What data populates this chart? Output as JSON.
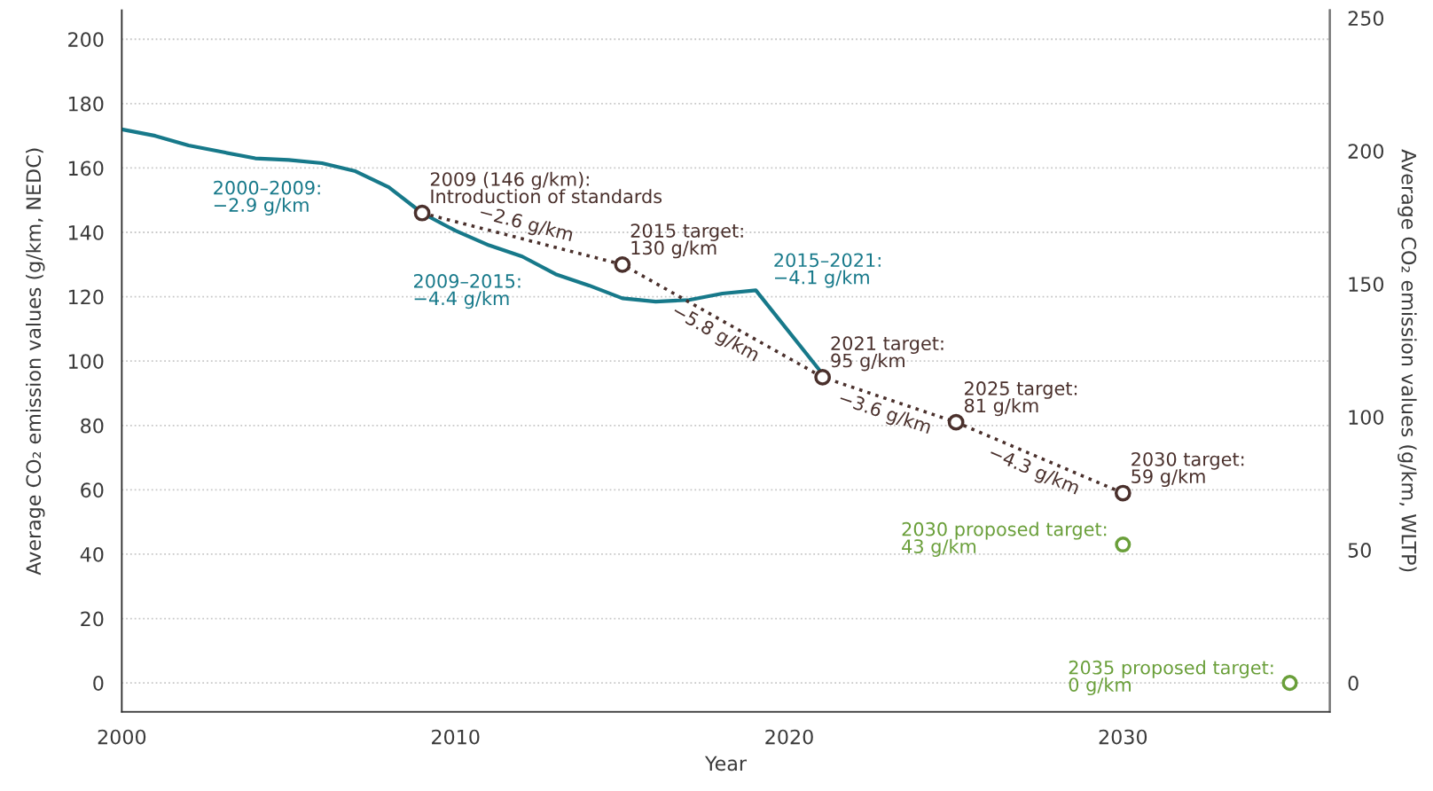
{
  "chart_data": {
    "type": "line",
    "xlabel": "Year",
    "ylabel": "Average CO₂ emission values (g/km, NEDC)",
    "y2label": "Average CO₂ emission values (g/km, WLTP)",
    "xlim": [
      2000,
      2036.2
    ],
    "xticks": [
      2000,
      2010,
      2020,
      2030
    ],
    "ylim": [
      -9,
      209
    ],
    "yticks": [
      0,
      20,
      40,
      60,
      80,
      100,
      120,
      140,
      160,
      180,
      200
    ],
    "y2lim": [
      -10.9,
      252.9
    ],
    "y2ticks": [
      0,
      50,
      100,
      150,
      200,
      250
    ],
    "grid": "y",
    "series": [
      {
        "color": "#17798a",
        "line_style": "solid",
        "marker": "none",
        "x": [
          2000,
          2001,
          2002,
          2003,
          2004,
          2005,
          2006,
          2007,
          2008,
          2009,
          2010,
          2011,
          2012,
          2013,
          2014,
          2015,
          2016,
          2017,
          2018,
          2019,
          2021
        ],
        "values": [
          172,
          170,
          167,
          165,
          163,
          162.5,
          161.5,
          159,
          154,
          146,
          140.5,
          136,
          132.5,
          127,
          123.5,
          119.5,
          118.5,
          119,
          121,
          122,
          96
        ]
      },
      {
        "type": "line",
        "color": "#4a302c",
        "line_style": "dotted",
        "marker": "circle",
        "x": [
          2009,
          2015,
          2021,
          2025,
          2030
        ],
        "values": [
          146,
          130,
          95,
          81,
          59
        ]
      },
      {
        "type": "scatter",
        "color": "#6a9f3a",
        "marker": "circle",
        "x": [
          2030,
          2035
        ],
        "values": [
          43,
          0
        ]
      }
    ],
    "annotations": [
      {
        "text": "2000–2009:\n−2.9 g/km",
        "x": 2006,
        "y": 161.5
      },
      {
        "text": "2009–2015:\n−4.4 g/km",
        "x": 2012,
        "y": 132.5
      },
      {
        "text": "2015–2021:\n−4.1 g/km",
        "x": 2019,
        "y": 122
      },
      {
        "text": "2009 (146 g/km):\nIntroduction of standards",
        "x": 2009,
        "y": 146
      },
      {
        "text": "2015 target:\n130 g/km",
        "x": 2015,
        "y": 130
      },
      {
        "text": "2021 target:\n95 g/km",
        "x": 2021,
        "y": 95
      },
      {
        "text": "2025 target:\n81 g/km",
        "x": 2025,
        "y": 81
      },
      {
        "text": "2030 target:\n59 g/km",
        "x": 2030,
        "y": 59
      },
      {
        "text": "2030 proposed target:\n43 g/km",
        "x": 2030,
        "y": 43
      },
      {
        "text": "2035 proposed target:\n0 g/km",
        "x": 2035,
        "y": 0
      },
      {
        "text": "−2.6 g/km",
        "x": 2012,
        "y": 138
      },
      {
        "text": "−5.8 g/km",
        "x": 2018,
        "y": 112.5
      },
      {
        "text": "−3.6 g/km",
        "x": 2023,
        "y": 88
      },
      {
        "text": "−4.3 g/km",
        "x": 2027.5,
        "y": 70
      }
    ]
  }
}
